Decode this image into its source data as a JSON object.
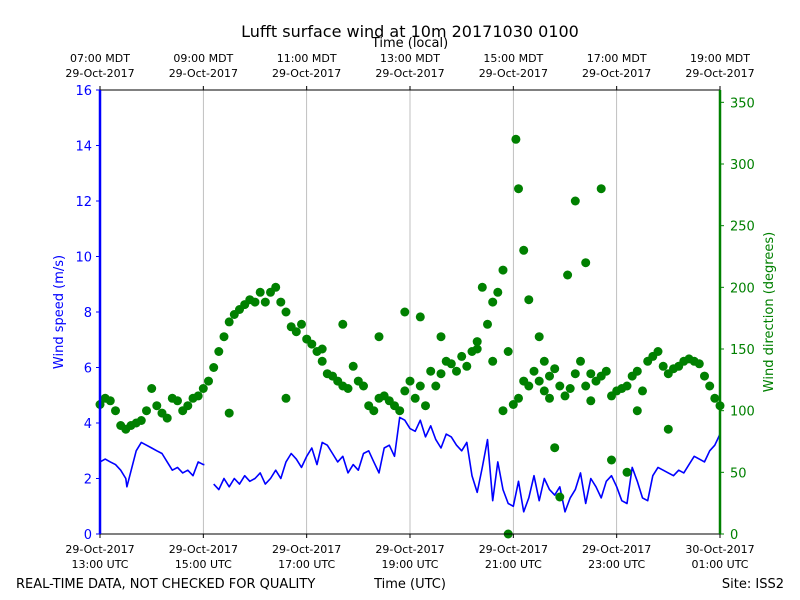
{
  "chart_data": {
    "type": "line+scatter",
    "title": "Lufft surface wind at 10m 20171030 0100",
    "top_axis_label": "Time (local)",
    "xlabel": "Time (UTC)",
    "footer_left": "REAL-TIME DATA, NOT CHECKED FOR QUALITY",
    "footer_right": "Site: ISS2",
    "left_axis": {
      "label": "Wind speed (m/s)",
      "ylim": [
        0,
        16
      ],
      "ticks": [
        "0",
        "2",
        "4",
        "6",
        "8",
        "10",
        "12",
        "14",
        "16"
      ],
      "color": "#0000ff"
    },
    "right_axis": {
      "label": "Wind direction (degrees)",
      "ylim": [
        0,
        360
      ],
      "ticks": [
        "0",
        "50",
        "100",
        "150",
        "200",
        "250",
        "300",
        "350"
      ],
      "color": "#008000"
    },
    "x_range_hours_utc": [
      13.0,
      25.0
    ],
    "bottom_ticks": [
      {
        "t": 13,
        "line1": "29-Oct-2017",
        "line2": "13:00 UTC"
      },
      {
        "t": 15,
        "line1": "29-Oct-2017",
        "line2": "15:00 UTC"
      },
      {
        "t": 17,
        "line1": "29-Oct-2017",
        "line2": "17:00 UTC"
      },
      {
        "t": 19,
        "line1": "29-Oct-2017",
        "line2": "19:00 UTC"
      },
      {
        "t": 21,
        "line1": "29-Oct-2017",
        "line2": "21:00 UTC"
      },
      {
        "t": 23,
        "line1": "29-Oct-2017",
        "line2": "23:00 UTC"
      },
      {
        "t": 25,
        "line1": "30-Oct-2017",
        "line2": "01:00 UTC"
      }
    ],
    "top_ticks": [
      {
        "t": 13,
        "line1": "07:00 MDT",
        "line2": "29-Oct-2017"
      },
      {
        "t": 15,
        "line1": "09:00 MDT",
        "line2": "29-Oct-2017"
      },
      {
        "t": 17,
        "line1": "11:00 MDT",
        "line2": "29-Oct-2017"
      },
      {
        "t": 19,
        "line1": "13:00 MDT",
        "line2": "29-Oct-2017"
      },
      {
        "t": 21,
        "line1": "15:00 MDT",
        "line2": "29-Oct-2017"
      },
      {
        "t": 23,
        "line1": "17:00 MDT",
        "line2": "29-Oct-2017"
      },
      {
        "t": 25,
        "line1": "19:00 MDT",
        "line2": "29-Oct-2017"
      }
    ],
    "series": [
      {
        "name": "Wind speed (m/s)",
        "axis": "left",
        "style": "line",
        "color": "#0000ff",
        "x": [
          13.0,
          13.1,
          13.2,
          13.3,
          13.4,
          13.5,
          13.52,
          13.7,
          13.8,
          13.9,
          14.0,
          14.1,
          14.2,
          14.3,
          14.4,
          14.5,
          14.6,
          14.7,
          14.8,
          14.9,
          15.0,
          15.02,
          15.1,
          15.2,
          15.3,
          15.4,
          15.5,
          15.6,
          15.7,
          15.8,
          15.9,
          16.0,
          16.1,
          16.2,
          16.3,
          16.4,
          16.5,
          16.6,
          16.7,
          16.8,
          16.9,
          17.0,
          17.1,
          17.2,
          17.3,
          17.4,
          17.5,
          17.6,
          17.7,
          17.8,
          17.9,
          18.0,
          18.1,
          18.2,
          18.3,
          18.4,
          18.5,
          18.6,
          18.7,
          18.8,
          18.9,
          19.0,
          19.1,
          19.2,
          19.3,
          19.4,
          19.5,
          19.6,
          19.7,
          19.8,
          19.9,
          20.0,
          20.1,
          20.2,
          20.3,
          20.4,
          20.5,
          20.6,
          20.7,
          20.8,
          20.9,
          21.0,
          21.1,
          21.2,
          21.3,
          21.4,
          21.5,
          21.6,
          21.7,
          21.8,
          21.9,
          22.0,
          22.1,
          22.2,
          22.3,
          22.4,
          22.5,
          22.6,
          22.7,
          22.8,
          22.9,
          23.0,
          23.1,
          23.2,
          23.3,
          23.4,
          23.5,
          23.6,
          23.7,
          23.8,
          23.9,
          24.0,
          24.1,
          24.2,
          24.3,
          24.4,
          24.5,
          24.6,
          24.7,
          24.8,
          24.9,
          25.0
        ],
        "y": [
          2.6,
          2.7,
          2.6,
          2.5,
          2.3,
          2.0,
          1.7,
          3.0,
          3.3,
          3.2,
          3.1,
          3.0,
          2.9,
          2.6,
          2.3,
          2.4,
          2.2,
          2.3,
          2.1,
          2.6,
          2.5,
          2.5,
          null,
          1.8,
          1.6,
          2.0,
          1.7,
          2.0,
          1.8,
          2.1,
          1.9,
          2.0,
          2.2,
          1.8,
          2.0,
          2.3,
          2.0,
          2.6,
          2.9,
          2.7,
          2.4,
          2.8,
          3.1,
          2.5,
          3.3,
          3.2,
          2.9,
          2.6,
          2.8,
          2.2,
          2.5,
          2.3,
          2.9,
          3.0,
          2.6,
          2.2,
          3.1,
          3.2,
          2.8,
          4.2,
          4.1,
          3.8,
          3.7,
          4.1,
          3.5,
          3.9,
          3.4,
          3.1,
          3.6,
          3.5,
          3.2,
          3.0,
          3.3,
          2.1,
          1.5,
          2.4,
          3.4,
          1.2,
          2.6,
          1.6,
          1.1,
          1.0,
          1.9,
          0.8,
          1.3,
          2.1,
          1.2,
          2.0,
          1.6,
          1.4,
          1.7,
          0.8,
          1.3,
          1.6,
          2.2,
          1.1,
          2.0,
          1.7,
          1.3,
          1.9,
          2.1,
          1.7,
          1.2,
          1.1,
          2.4,
          1.9,
          1.3,
          1.2,
          2.1,
          2.4,
          2.3,
          2.2,
          2.1,
          2.3,
          2.2,
          2.5,
          2.8,
          2.7,
          2.6,
          3.0,
          3.2,
          3.6
        ]
      },
      {
        "name": "Wind direction (degrees)",
        "axis": "right",
        "style": "scatter",
        "color": "#008000",
        "x": [
          13.0,
          13.1,
          13.2,
          13.3,
          13.4,
          13.5,
          13.6,
          13.7,
          13.8,
          13.9,
          14.0,
          14.1,
          14.2,
          14.3,
          14.4,
          14.5,
          14.6,
          14.7,
          14.8,
          14.9,
          15.0,
          15.1,
          15.2,
          15.3,
          15.4,
          15.5,
          15.6,
          15.7,
          15.8,
          15.9,
          16.0,
          16.1,
          16.2,
          16.3,
          16.4,
          16.5,
          16.6,
          16.7,
          16.8,
          16.9,
          17.0,
          17.1,
          17.2,
          17.3,
          17.4,
          17.5,
          17.6,
          17.7,
          17.8,
          17.9,
          18.0,
          18.1,
          18.2,
          18.3,
          18.4,
          18.5,
          18.6,
          18.7,
          18.8,
          18.9,
          19.0,
          19.1,
          19.2,
          19.3,
          19.4,
          19.5,
          19.6,
          19.7,
          19.8,
          19.9,
          20.0,
          20.1,
          20.2,
          20.3,
          20.4,
          20.5,
          20.6,
          20.7,
          20.8,
          20.9,
          21.0,
          21.1,
          21.2,
          21.3,
          21.4,
          21.5,
          21.6,
          21.7,
          21.8,
          21.9,
          22.0,
          22.1,
          22.2,
          22.3,
          22.4,
          22.5,
          22.6,
          22.7,
          22.8,
          22.9,
          23.0,
          23.1,
          23.2,
          23.3,
          23.4,
          23.5,
          23.6,
          23.7,
          23.8,
          23.9,
          24.0,
          24.1,
          24.2,
          24.3,
          24.4,
          24.5,
          24.6,
          24.7,
          24.8,
          24.9,
          25.0,
          15.5,
          16.6,
          17.3,
          17.7,
          18.4,
          18.9,
          19.2,
          19.6,
          20.3,
          20.6,
          20.8,
          20.9,
          21.05,
          21.1,
          21.2,
          21.3,
          21.5,
          21.6,
          21.7,
          21.8,
          21.9,
          22.05,
          22.2,
          22.4,
          22.5,
          22.7,
          22.9,
          23.2,
          23.4,
          24.0
        ],
        "y": [
          105,
          110,
          108,
          100,
          88,
          85,
          88,
          90,
          92,
          100,
          118,
          104,
          98,
          94,
          110,
          108,
          100,
          104,
          110,
          112,
          118,
          124,
          135,
          148,
          160,
          172,
          178,
          182,
          186,
          190,
          188,
          196,
          188,
          196,
          200,
          188,
          180,
          168,
          164,
          170,
          158,
          154,
          148,
          140,
          130,
          128,
          124,
          120,
          118,
          136,
          124,
          120,
          104,
          100,
          110,
          112,
          108,
          104,
          100,
          116,
          124,
          110,
          120,
          104,
          132,
          120,
          130,
          140,
          138,
          132,
          144,
          136,
          148,
          156,
          200,
          170,
          188,
          196,
          214,
          148,
          105,
          110,
          124,
          120,
          132,
          124,
          116,
          128,
          134,
          120,
          112,
          118,
          130,
          140,
          120,
          108,
          124,
          128,
          132,
          112,
          116,
          118,
          120,
          128,
          132,
          116,
          140,
          144,
          148,
          136,
          130,
          134,
          136,
          140,
          142,
          140,
          138,
          128,
          120,
          110,
          104,
          98,
          110,
          150,
          170,
          160,
          180,
          176,
          160,
          150,
          140,
          100,
          0,
          320,
          280,
          230,
          190,
          160,
          140,
          110,
          70,
          30,
          210,
          270,
          220,
          130,
          280,
          60,
          50,
          100,
          85
        ]
      }
    ]
  }
}
